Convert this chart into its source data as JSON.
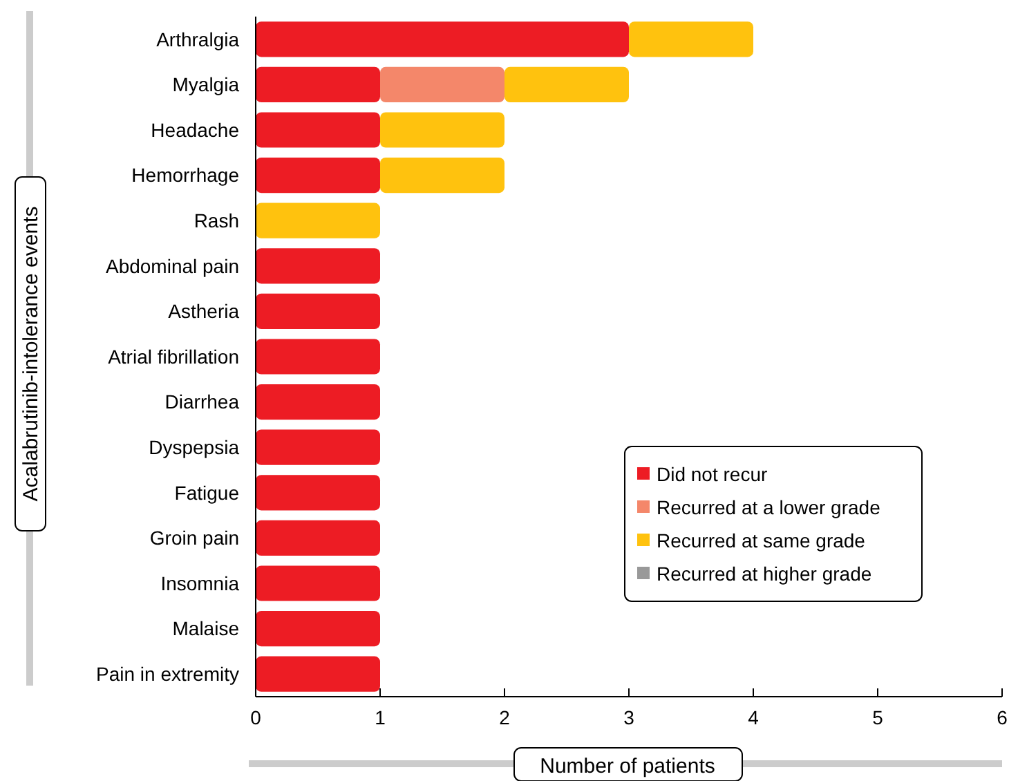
{
  "chart_data": {
    "type": "bar",
    "orientation": "horizontal",
    "stacked": true,
    "xlabel": "Number of patients",
    "ylabel": "Acalabrutinib-intolerance events",
    "categories": [
      "Arthralgia",
      "Myalgia",
      "Headache",
      "Hemorrhage",
      "Rash",
      "Abdominal pain",
      "Astheria",
      "Atrial fibrillation",
      "Diarrhea",
      "Dyspepsia",
      "Fatigue",
      "Groin pain",
      "Insomnia",
      "Malaise",
      "Pain in extremity"
    ],
    "series": [
      {
        "name": "Did not recur",
        "color": "#ed1c24",
        "values": [
          3,
          1,
          1,
          1,
          0,
          1,
          1,
          1,
          1,
          1,
          1,
          1,
          1,
          1,
          1
        ]
      },
      {
        "name": "Recurred at a lower grade",
        "color": "#f4876a",
        "values": [
          0,
          1,
          0,
          0,
          0,
          0,
          0,
          0,
          0,
          0,
          0,
          0,
          0,
          0,
          0
        ]
      },
      {
        "name": "Recurred at same grade",
        "color": "#ffc20e",
        "values": [
          1,
          1,
          1,
          1,
          1,
          0,
          0,
          0,
          0,
          0,
          0,
          0,
          0,
          0,
          0
        ]
      },
      {
        "name": "Recurred at higher grade",
        "color": "#999999",
        "values": [
          0,
          0,
          0,
          0,
          0,
          0,
          0,
          0,
          0,
          0,
          0,
          0,
          0,
          0,
          0
        ]
      }
    ],
    "xlim": [
      0,
      6
    ],
    "xticks": [
      0,
      1,
      2,
      3,
      4,
      5,
      6
    ],
    "grid": false,
    "legend": "bottom right"
  }
}
